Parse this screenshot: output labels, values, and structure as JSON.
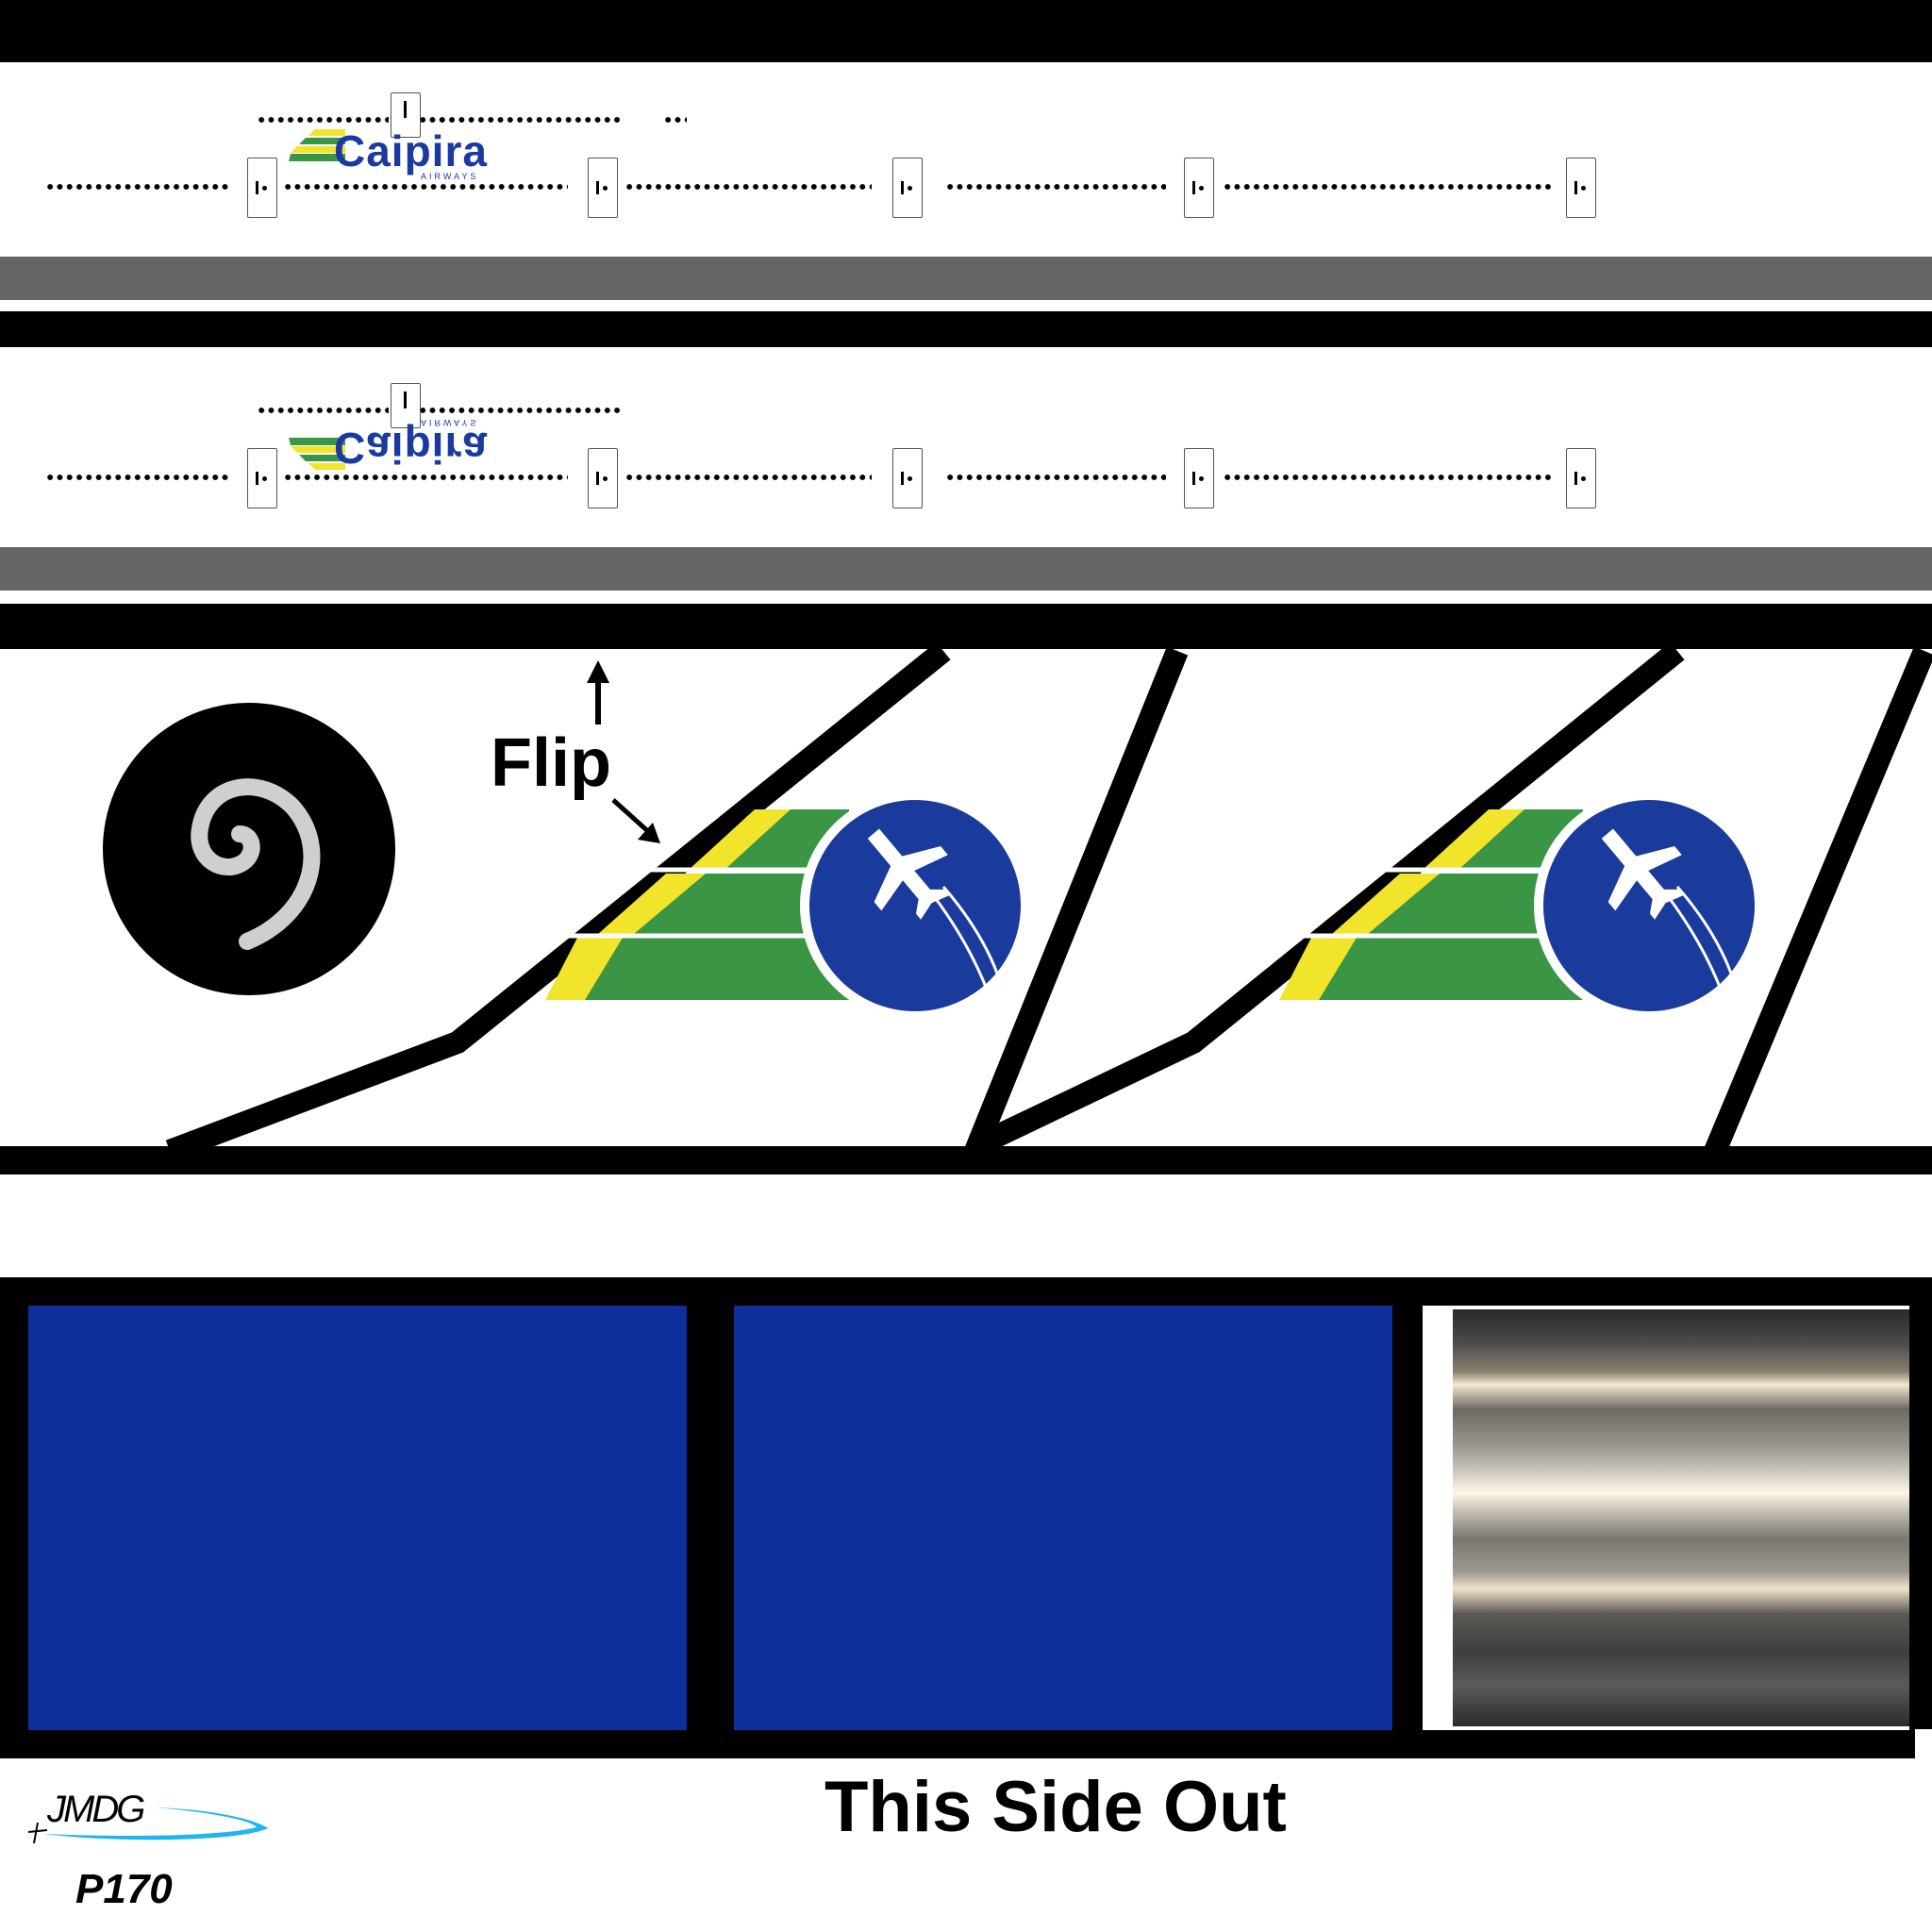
{
  "fuselage_logo": {
    "brand": "Caipira",
    "sub": "AIRWAYS"
  },
  "fuselage_logo_mirrored": {
    "brand": "Caipira",
    "sub": "AIRWAYS"
  },
  "flip_label": "Flip",
  "side_label": "This Side Out",
  "signature": "JMDG",
  "model_code": "P170",
  "colors": {
    "fuselage_stripe": "#666666",
    "navy_panel": "#0f2f9a",
    "tail_logo_circle": "#1a3a9c",
    "tail_logo_green": "#3a9645",
    "tail_logo_yellow": "#f1e42a",
    "signature_swoosh": "#1fb6ee"
  },
  "icons": [
    "spiral-icon",
    "airplane-icon",
    "arrow-up-icon",
    "arrow-diagonal-icon"
  ]
}
